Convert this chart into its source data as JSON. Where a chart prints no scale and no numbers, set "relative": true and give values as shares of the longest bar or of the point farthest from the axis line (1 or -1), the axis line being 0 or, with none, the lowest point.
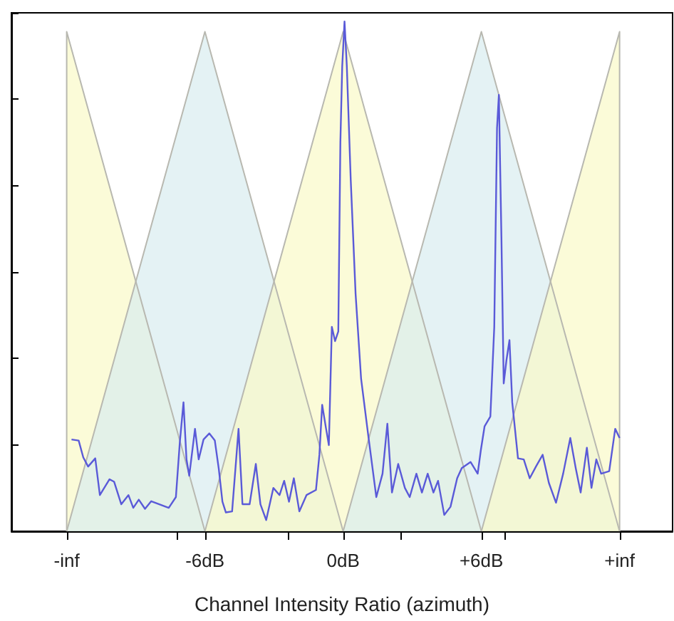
{
  "chart_data": {
    "type": "line",
    "relative": true,
    "xlabel": "Channel Intensity Ratio (azimuth)",
    "xlim": [
      -14.4,
      14.3
    ],
    "xticks": [
      {
        "value": -12,
        "label": "-inf"
      },
      {
        "value": -7.2,
        "label": null
      },
      {
        "value": -6,
        "label": "-6dB"
      },
      {
        "value": -2.4,
        "label": null
      },
      {
        "value": 0,
        "label": "0dB"
      },
      {
        "value": 2.5,
        "label": null
      },
      {
        "value": 6,
        "label": "+6dB"
      },
      {
        "value": 7,
        "label": null
      },
      {
        "value": 12,
        "label": "+inf"
      }
    ],
    "tick_labels": "x",
    "marker": "none",
    "line_style": "solid",
    "series": [
      {
        "type": "area",
        "color": "#fafac8",
        "x": [
          -12,
          -12,
          -6
        ],
        "values": [
          0,
          0.98,
          0
        ]
      },
      {
        "type": "area",
        "color": "#d8ecf0",
        "x": [
          -12,
          -6,
          0
        ],
        "values": [
          0,
          0.98,
          0
        ]
      },
      {
        "type": "area",
        "color": "#fafac8",
        "x": [
          -6,
          0,
          6
        ],
        "values": [
          0,
          0.98,
          0
        ]
      },
      {
        "type": "area",
        "color": "#d8ecf0",
        "x": [
          0,
          6,
          12
        ],
        "values": [
          0,
          0.98,
          0
        ]
      },
      {
        "type": "area",
        "color": "#fafac8",
        "x": [
          6,
          12,
          12
        ],
        "values": [
          0,
          0.98,
          0
        ]
      },
      {
        "color": "#5a5ad8",
        "x": [
          -11.79,
          -11.48,
          -11.28,
          -11.07,
          -10.76,
          -10.56,
          -10.14,
          -9.94,
          -9.63,
          -9.32,
          -9.11,
          -8.87,
          -8.6,
          -8.33,
          -7.98,
          -7.57,
          -7.26,
          -7.09,
          -6.93,
          -6.8,
          -6.68,
          -6.43,
          -6.27,
          -6.06,
          -5.81,
          -5.57,
          -5.4,
          -5.24,
          -5.09,
          -4.82,
          -4.54,
          -4.37,
          -4.06,
          -3.79,
          -3.59,
          -3.34,
          -3.03,
          -2.76,
          -2.56,
          -2.35,
          -2.14,
          -1.9,
          -1.59,
          -1.18,
          -1.03,
          -0.91,
          -0.74,
          -0.62,
          -0.49,
          -0.35,
          -0.21,
          -0.12,
          -0.04,
          0.06,
          0.16,
          0.33,
          0.54,
          0.78,
          1.09,
          1.44,
          1.71,
          1.92,
          2.12,
          2.39,
          2.68,
          2.89,
          3.18,
          3.42,
          3.67,
          3.92,
          4.12,
          4.39,
          4.66,
          4.95,
          5.15,
          5.53,
          5.84,
          5.98,
          6.14,
          6.39,
          6.56,
          6.68,
          6.76,
          6.87,
          6.97,
          7.09,
          7.22,
          7.34,
          7.59,
          7.84,
          8.1,
          8.37,
          8.66,
          8.93,
          9.24,
          9.55,
          9.86,
          10.1,
          10.31,
          10.58,
          10.78,
          10.99,
          11.2,
          11.55,
          11.81,
          12.0
        ],
        "values": [
          0.18,
          0.178,
          0.145,
          0.127,
          0.143,
          0.071,
          0.102,
          0.097,
          0.053,
          0.071,
          0.046,
          0.062,
          0.044,
          0.059,
          0.053,
          0.046,
          0.067,
          0.174,
          0.253,
          0.141,
          0.109,
          0.201,
          0.141,
          0.18,
          0.192,
          0.178,
          0.123,
          0.058,
          0.037,
          0.039,
          0.201,
          0.053,
          0.053,
          0.132,
          0.053,
          0.022,
          0.085,
          0.071,
          0.099,
          0.058,
          0.104,
          0.039,
          0.071,
          0.081,
          0.15,
          0.248,
          0.201,
          0.169,
          0.401,
          0.373,
          0.392,
          0.763,
          0.912,
          1,
          0.912,
          0.689,
          0.466,
          0.299,
          0.188,
          0.067,
          0.113,
          0.211,
          0.076,
          0.132,
          0.085,
          0.067,
          0.113,
          0.076,
          0.113,
          0.076,
          0.099,
          0.032,
          0.048,
          0.104,
          0.124,
          0.136,
          0.113,
          0.16,
          0.206,
          0.225,
          0.401,
          0.791,
          0.856,
          0.578,
          0.29,
          0.336,
          0.375,
          0.253,
          0.143,
          0.141,
          0.104,
          0.127,
          0.15,
          0.095,
          0.056,
          0.113,
          0.183,
          0.123,
          0.076,
          0.164,
          0.085,
          0.141,
          0.113,
          0.118,
          0.201,
          0.183
        ]
      }
    ]
  }
}
